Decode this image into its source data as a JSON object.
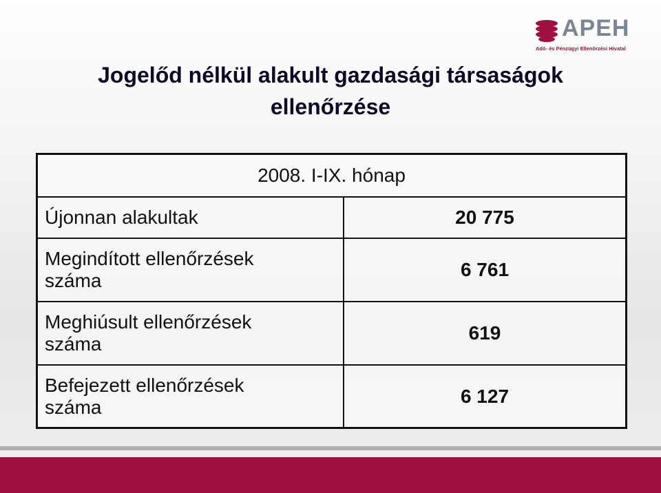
{
  "header": {
    "title": "Jogelőd nélkül alakult gazdasági társaságok ellenőrzése",
    "logo": {
      "name": "APEH",
      "subtitle": "Adó- és Pénzügyi Ellenőrzési Hivatal"
    }
  },
  "table": {
    "column_header": "2008. I-IX. hónap",
    "rows": [
      [
        "Újonnan alakultak",
        "20 775"
      ],
      [
        "Megindított ellenőrzések száma",
        "6 761"
      ],
      [
        "Meghiúsult ellenőrzések száma",
        "619"
      ],
      [
        "Befejezett ellenőrzések száma",
        "6 127"
      ]
    ]
  }
}
